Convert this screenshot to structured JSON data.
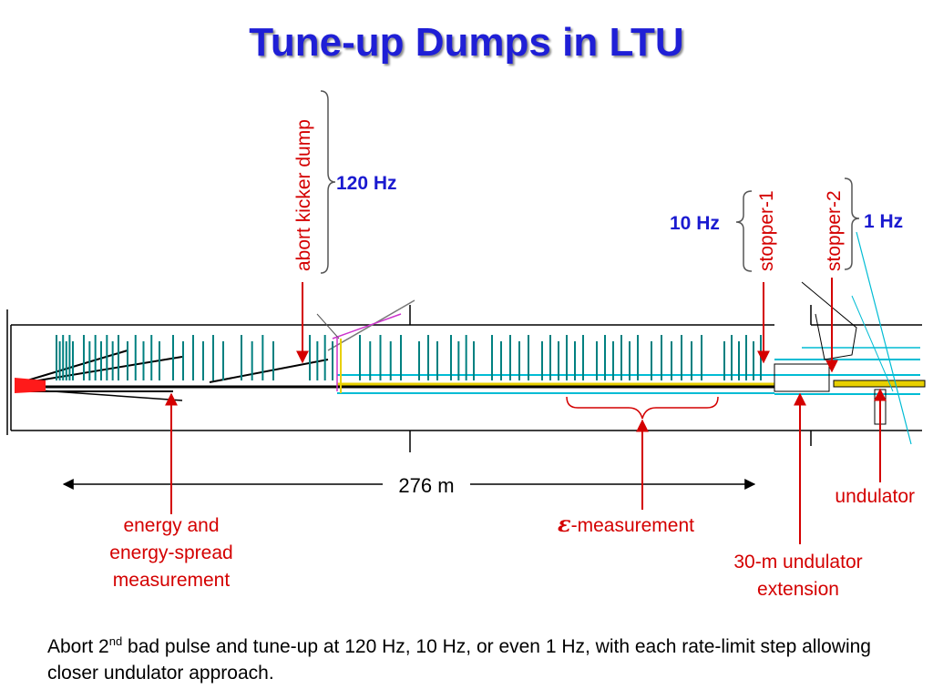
{
  "title": "Tune-up Dumps in LTU",
  "labels": {
    "abort_kicker_dump": "abort kicker dump",
    "rate_120": "120 Hz",
    "stopper_1": "stopper-1",
    "rate_10": "10 Hz",
    "stopper_2": "stopper-2",
    "rate_1": "1 Hz",
    "length": "276 m",
    "undulator": "undulator",
    "energy_line1": "energy and",
    "energy_line2": "energy-spread",
    "energy_line3": "measurement",
    "epsilon_symbol": "ε",
    "epsilon_text": "-measurement",
    "extension_line1": "30-m undulator",
    "extension_line2": "extension"
  },
  "caption": {
    "part1": "Abort 2",
    "superscript": "nd",
    "part2": " bad pulse and tune-up at 120 Hz, 10 Hz, or even 1 Hz, with each rate-limit step allowing closer undulator approach."
  },
  "colors": {
    "title": "#1f1fd6",
    "annotation": "#d40000",
    "rate": "#1a1ad0",
    "magnet": "#008080"
  }
}
